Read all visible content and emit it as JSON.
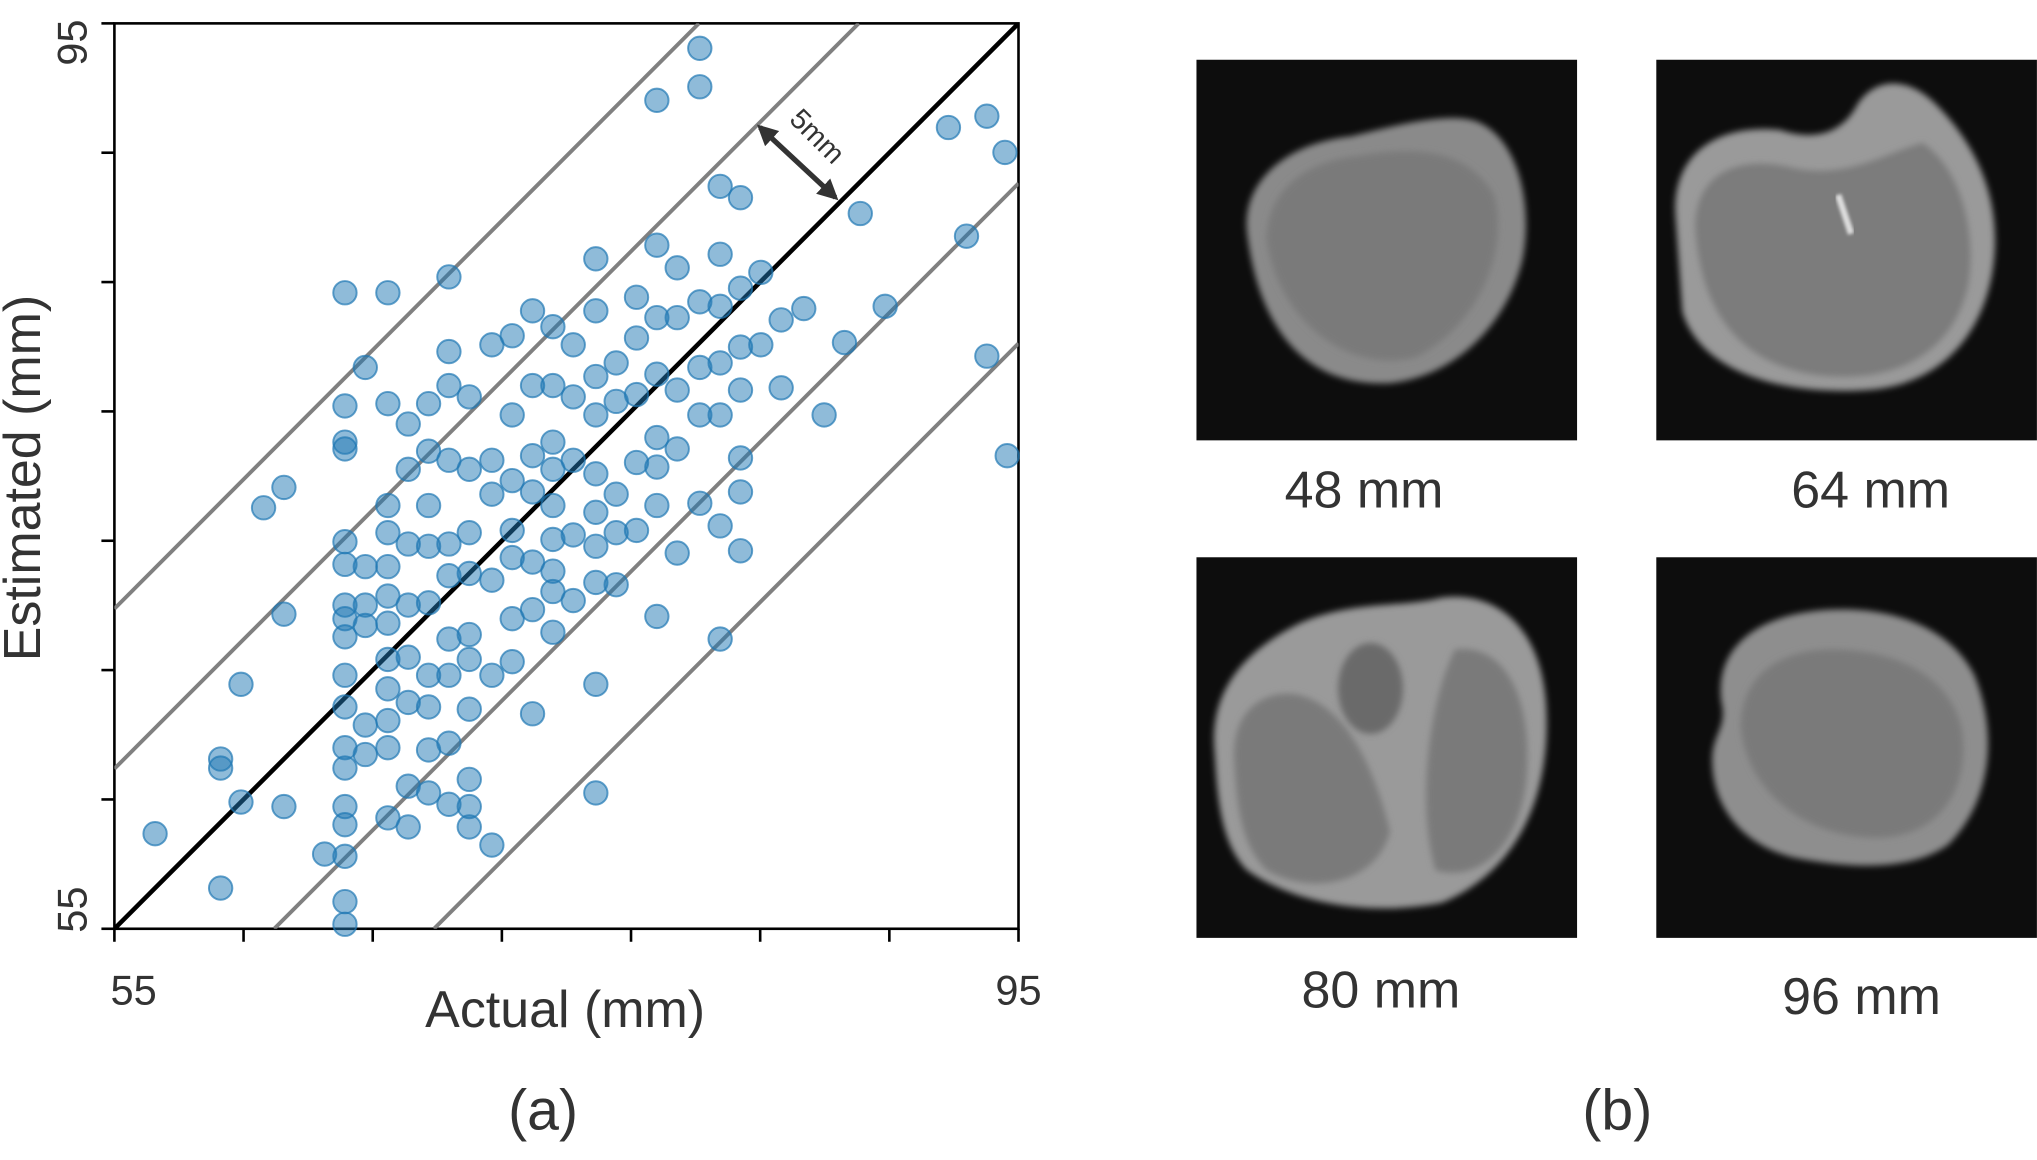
{
  "chart_data": {
    "type": "scatter",
    "panel_label": "(a)",
    "xlabel": "Actual (mm)",
    "ylabel": "Estimated (mm)",
    "xlim": [
      55,
      95
    ],
    "ylim": [
      55,
      95
    ],
    "xticks": [
      55,
      95
    ],
    "yticks": [
      55,
      95
    ],
    "x_minor_ticks": [
      60.714,
      66.429,
      72.143,
      77.857,
      83.571,
      89.286
    ],
    "y_minor_ticks": [
      60.714,
      66.429,
      72.143,
      77.857,
      83.571,
      89.286
    ],
    "color": "#1f77b4",
    "reference_lines": [
      {
        "offset": 14.14,
        "color": "#808080"
      },
      {
        "offset": 7.07,
        "color": "#808080"
      },
      {
        "offset": 0,
        "color": "#000000"
      },
      {
        "offset": -7.07,
        "color": "#808080"
      },
      {
        "offset": -14.14,
        "color": "#808080"
      }
    ],
    "annotation": "5mm",
    "x": [
      56.8,
      59.7,
      59.7,
      59.7,
      60.6,
      60.6,
      61.6,
      62.5,
      62.5,
      62.5,
      64.3,
      65.2,
      65.2,
      65.2,
      65.2,
      65.2,
      65.2,
      65.2,
      65.2,
      65.2,
      65.2,
      65.2,
      65.2,
      65.2,
      65.2,
      65.2,
      65.2,
      65.2,
      65.2,
      66.1,
      66.1,
      66.1,
      66.1,
      66.1,
      66.1,
      67.1,
      67.1,
      67.1,
      67.1,
      67.1,
      67.1,
      67.1,
      67.1,
      67.1,
      67.1,
      67.1,
      68.0,
      68.0,
      68.0,
      68.0,
      68.0,
      68.0,
      68.0,
      68.0,
      68.9,
      68.9,
      68.9,
      68.9,
      68.9,
      68.9,
      68.9,
      68.9,
      69.8,
      69.8,
      69.8,
      69.8,
      69.8,
      69.8,
      69.8,
      69.8,
      69.8,
      70.7,
      70.7,
      70.7,
      70.7,
      70.7,
      70.7,
      70.7,
      70.7,
      70.7,
      71.7,
      71.7,
      71.7,
      71.7,
      71.7,
      71.7,
      72.6,
      72.6,
      72.6,
      72.6,
      72.6,
      72.6,
      73.5,
      73.5,
      73.5,
      73.5,
      73.5,
      73.5,
      73.5,
      74.4,
      74.4,
      74.4,
      74.4,
      74.4,
      74.4,
      74.4,
      75.3,
      75.3,
      75.3,
      75.3,
      75.3,
      76.3,
      76.3,
      76.3,
      76.3,
      76.3,
      76.3,
      76.3,
      76.3,
      76.3,
      77.2,
      77.2,
      77.2,
      77.2,
      77.2,
      78.1,
      78.1,
      78.1,
      78.1,
      78.1,
      79.0,
      79.0,
      79.0,
      79.0,
      79.0,
      79.0,
      79.0,
      79.9,
      79.9,
      79.9,
      79.9,
      79.9,
      80.9,
      80.9,
      80.9,
      80.9,
      80.9,
      81.8,
      81.8,
      81.8,
      81.8,
      81.8,
      81.8,
      82.7,
      82.7,
      82.7,
      82.7,
      82.7,
      82.7,
      82.7,
      83.6,
      83.6,
      84.5,
      84.5,
      85.5,
      86.4,
      87.3,
      88.0,
      89.1,
      91.9,
      92.7,
      93.6,
      93.6,
      94.4,
      94.5,
      81.8,
      80.9,
      79.0,
      72.6,
      70.7,
      68.9,
      67.1,
      69.8,
      74.4,
      76.3,
      74.4
    ],
    "y": [
      59.2,
      62.5,
      62.1,
      56.8,
      60.6,
      65.8,
      73.6,
      74.5,
      68.9,
      60.4,
      58.3,
      83.1,
      78.1,
      76.5,
      76.2,
      72.1,
      71.1,
      69.3,
      68.7,
      67.9,
      66.2,
      64.8,
      63.0,
      62.1,
      60.4,
      59.6,
      58.2,
      56.2,
      55.2,
      79.8,
      68.4,
      71.0,
      69.3,
      64.0,
      62.7,
      83.1,
      78.2,
      73.7,
      72.5,
      71.0,
      69.7,
      66.9,
      65.6,
      64.2,
      63.0,
      59.9,
      77.3,
      75.3,
      72.0,
      69.3,
      67.0,
      65.0,
      61.3,
      59.5,
      78.2,
      76.1,
      71.9,
      69.4,
      66.2,
      64.8,
      62.9,
      61.0,
      83.8,
      80.5,
      79.0,
      75.7,
      72.0,
      70.6,
      66.2,
      63.2,
      60.5,
      78.5,
      75.3,
      72.5,
      70.7,
      68.0,
      64.7,
      61.6,
      60.4,
      59.5,
      80.8,
      75.7,
      74.2,
      70.4,
      66.2,
      58.7,
      81.2,
      77.7,
      72.6,
      71.4,
      68.7,
      66.8,
      82.3,
      79.0,
      75.9,
      74.3,
      71.2,
      69.1,
      64.5,
      81.6,
      79.0,
      76.5,
      73.7,
      72.2,
      69.9,
      68.1,
      80.8,
      78.5,
      75.7,
      72.4,
      69.5,
      84.6,
      82.3,
      79.4,
      77.7,
      75.1,
      71.9,
      70.3,
      65.8,
      61.0,
      80.0,
      78.3,
      74.2,
      72.5,
      70.2,
      82.9,
      81.1,
      78.6,
      75.6,
      72.6,
      85.2,
      82.0,
      79.5,
      76.7,
      73.7,
      68.8,
      91.6,
      84.2,
      82.0,
      78.8,
      76.2,
      71.6,
      93.9,
      92.2,
      82.7,
      79.8,
      73.8,
      87.8,
      84.8,
      82.5,
      80.0,
      77.7,
      67.8,
      87.3,
      83.3,
      80.7,
      78.8,
      75.8,
      74.3,
      71.7,
      84.0,
      80.8,
      81.9,
      78.9,
      82.4,
      77.7,
      80.9,
      86.6,
      82.5,
      90.4,
      85.6,
      90.9,
      80.3,
      89.3,
      75.9,
      72.8,
      77.7,
      75.4,
      74.8,
      66.9,
      73.7,
      68.5,
      67.8,
      75.3,
      73.4,
      70.8
    ]
  },
  "images": {
    "panel_label": "(b)",
    "items": [
      {
        "label": "48 mm"
      },
      {
        "label": "64 mm"
      },
      {
        "label": "80 mm"
      },
      {
        "label": "96 mm"
      }
    ]
  }
}
